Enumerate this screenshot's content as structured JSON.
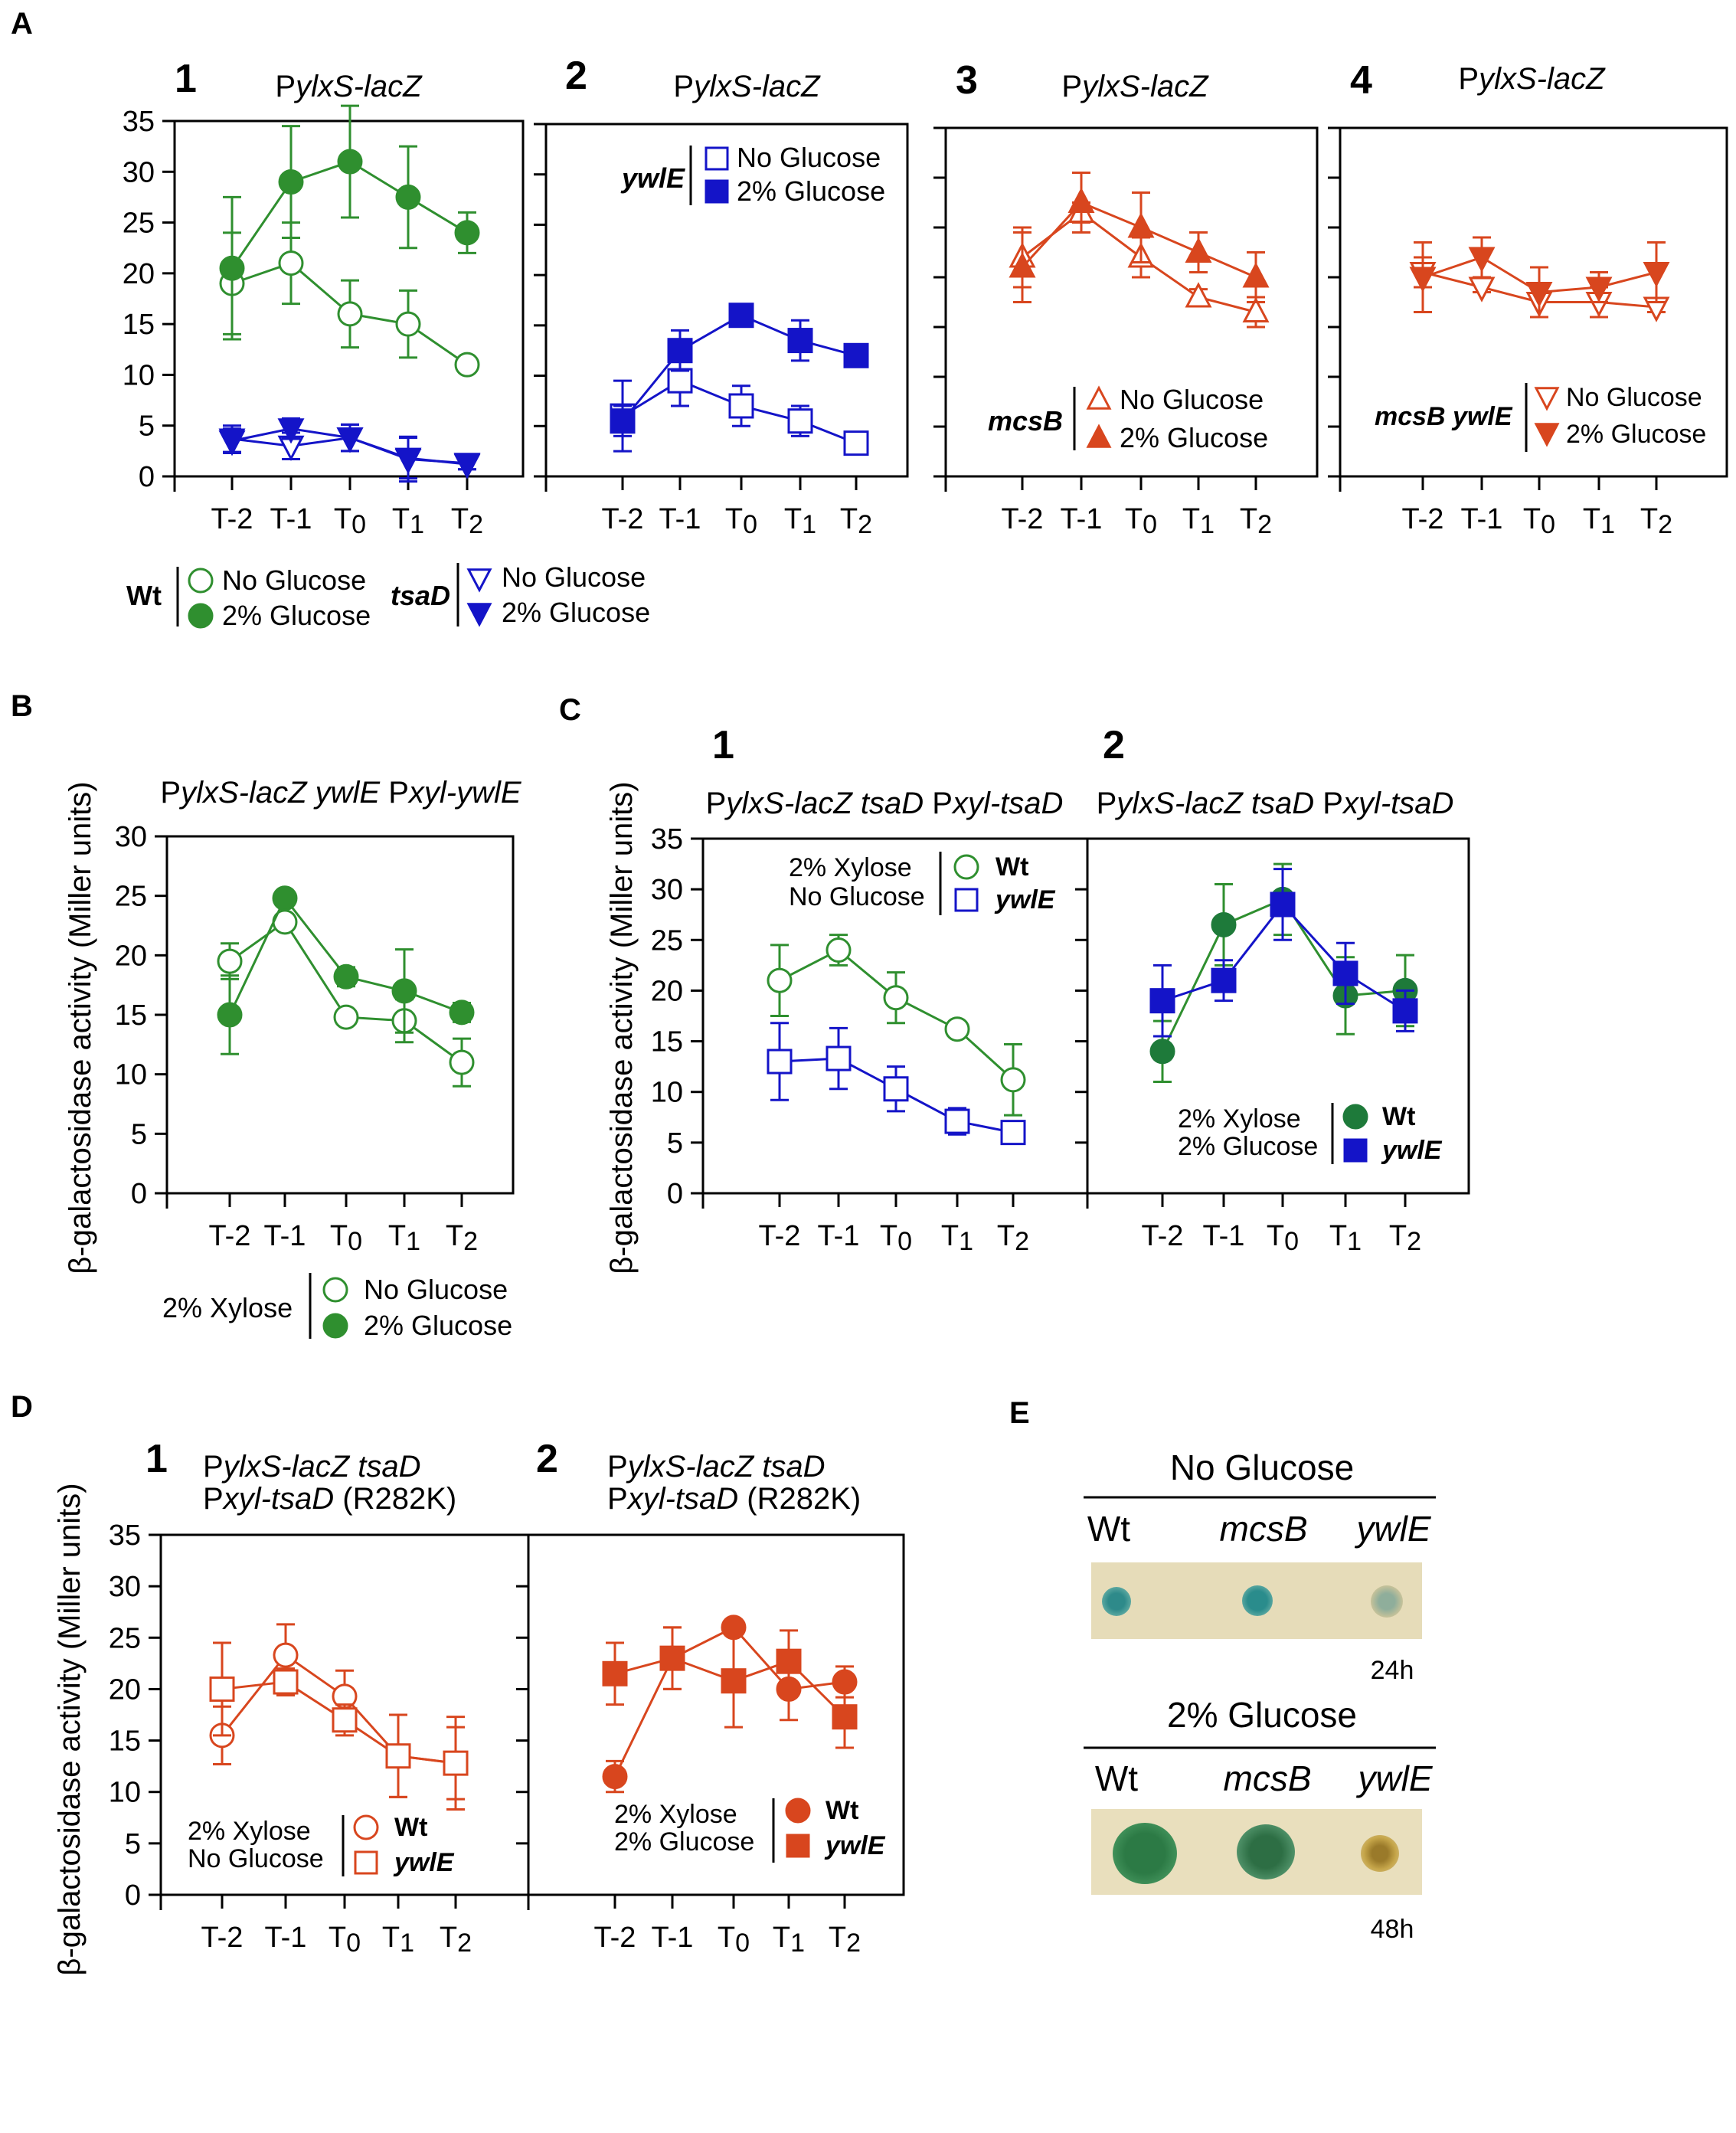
{
  "figure": {
    "colors": {
      "green": "#2f8f2f",
      "blue": "#1414c8",
      "orange": "#d8461e",
      "axis": "#000000"
    },
    "time_labels": [
      "T-2",
      "T-1",
      "T0",
      "T1",
      "T2"
    ]
  },
  "chart_data": [
    {
      "id": "A1",
      "panel": "A",
      "number": "1",
      "type": "line",
      "title": "PylxS-lacZ",
      "title_italic_part": "ylxS-lacZ",
      "ylabel": "",
      "ylim": [
        0,
        35
      ],
      "yticks": [
        0,
        5,
        10,
        15,
        20,
        25,
        30,
        35
      ],
      "show_tick_labels": true,
      "categories": [
        "T-2",
        "T-1",
        "T0",
        "T1",
        "T2"
      ],
      "series": [
        {
          "name": "Wt No Glucose",
          "color": "#2f8f2f",
          "marker": "circle",
          "filled": false,
          "values": [
            19,
            21,
            16,
            15,
            11
          ],
          "errors": [
            5,
            4,
            3.3,
            3.3,
            0.6
          ]
        },
        {
          "name": "Wt 2% Glucose",
          "color": "#2f8f2f",
          "marker": "circle",
          "filled": true,
          "values": [
            20.5,
            29,
            31,
            27.5,
            24
          ],
          "errors": [
            7,
            5.5,
            5.5,
            5,
            2
          ]
        },
        {
          "name": "tsaD No Glucose",
          "color": "#1414c8",
          "marker": "triangle-down",
          "filled": false,
          "values": [
            3.7,
            3,
            3.8,
            1.8,
            1.2
          ],
          "errors": [
            1.3,
            1.3,
            1.3,
            2,
            0.5
          ]
        },
        {
          "name": "tsaD 2% Glucose",
          "color": "#1414c8",
          "marker": "triangle-down",
          "filled": true,
          "values": [
            3.5,
            4.7,
            3.8,
            1.7,
            1.3
          ],
          "errors": [
            1.2,
            1,
            1.3,
            2.2,
            0.6
          ]
        }
      ]
    },
    {
      "id": "A2",
      "panel": "",
      "number": "2",
      "type": "line",
      "title": "PylxS-lacZ",
      "title_italic_part": "ylxS-lacZ",
      "ylim": [
        0,
        35
      ],
      "yticks": [
        0,
        5,
        10,
        15,
        20,
        25,
        30,
        35
      ],
      "show_tick_labels": false,
      "categories": [
        "T-2",
        "T-1",
        "T0",
        "T1",
        "T2"
      ],
      "series": [
        {
          "name": "ywlE No Glucose",
          "color": "#1414c8",
          "marker": "square",
          "filled": false,
          "values": [
            6,
            9.5,
            7,
            5.5,
            3.3
          ],
          "errors": [
            3.5,
            2.5,
            2,
            1.5,
            0.4
          ]
        },
        {
          "name": "ywlE 2% Glucose",
          "color": "#1414c8",
          "marker": "square",
          "filled": true,
          "values": [
            5.5,
            12.5,
            16,
            13.5,
            12
          ],
          "errors": [
            1.5,
            2,
            0.6,
            2,
            0.6
          ]
        }
      ]
    },
    {
      "id": "A3",
      "panel": "",
      "number": "3",
      "type": "line",
      "title": "PylxS-lacZ",
      "title_italic_part": "ylxS-lacZ",
      "ylim": [
        0,
        35
      ],
      "yticks": [
        0,
        5,
        10,
        15,
        20,
        25,
        30,
        35
      ],
      "show_tick_labels": false,
      "categories": [
        "T-2",
        "T-1",
        "T0",
        "T1",
        "T2"
      ],
      "series": [
        {
          "name": "mcsB No Glucose",
          "color": "#d8461e",
          "marker": "triangle-up",
          "filled": false,
          "values": [
            22,
            26.5,
            22,
            18,
            16.5
          ],
          "errors": [
            3,
            1,
            2,
            0.8,
            1.5
          ]
        },
        {
          "name": "mcsB 2% Glucose",
          "color": "#d8461e",
          "marker": "triangle-up",
          "filled": true,
          "values": [
            21,
            27.5,
            25,
            22.5,
            20
          ],
          "errors": [
            3.5,
            3,
            3.5,
            2,
            2.5
          ]
        }
      ]
    },
    {
      "id": "A4",
      "panel": "",
      "number": "4",
      "type": "line",
      "title": "PylxS-lacZ",
      "title_italic_part": "ylxS-lacZ",
      "ylim": [
        0,
        35
      ],
      "yticks": [
        0,
        5,
        10,
        15,
        20,
        25,
        30,
        35
      ],
      "show_tick_labels": false,
      "categories": [
        "T-2",
        "T-1",
        "T0",
        "T1",
        "T2"
      ],
      "series": [
        {
          "name": "mcsB ywlE No Glucose",
          "color": "#d8461e",
          "marker": "triangle-down",
          "filled": false,
          "values": [
            20.5,
            19,
            17.5,
            17.5,
            17
          ],
          "errors": [
            1.5,
            0.5,
            1.5,
            1.5,
            0.5
          ]
        },
        {
          "name": "mcsB ywlE 2% Glucose",
          "color": "#d8461e",
          "marker": "triangle-down",
          "filled": true,
          "values": [
            20,
            22,
            18.5,
            19,
            20.5
          ],
          "errors": [
            3.5,
            2,
            2.5,
            1.5,
            3
          ]
        }
      ]
    },
    {
      "id": "B",
      "panel": "B",
      "number": "",
      "type": "line",
      "title": "PylxS-lacZ ywlE Pxyl-ywlE",
      "ylabel": "β-galactosidase activity (Miller units)",
      "ylim": [
        0,
        30
      ],
      "yticks": [
        0,
        5,
        10,
        15,
        20,
        25,
        30
      ],
      "show_tick_labels": true,
      "categories": [
        "T-2",
        "T-1",
        "T0",
        "T1",
        "T2"
      ],
      "series": [
        {
          "name": "No Glucose",
          "color": "#2f8f2f",
          "marker": "circle",
          "filled": false,
          "values": [
            19.5,
            22.8,
            14.8,
            14.5,
            11
          ],
          "errors": [
            1.5,
            0.5,
            0.4,
            1.8,
            2
          ]
        },
        {
          "name": "2% Glucose",
          "color": "#2f8f2f",
          "marker": "circle",
          "filled": true,
          "values": [
            15,
            24.8,
            18.2,
            17,
            15.2
          ],
          "errors": [
            3.3,
            0.4,
            0.8,
            3.5,
            0.8
          ]
        }
      ]
    },
    {
      "id": "C1",
      "panel": "C",
      "number": "1",
      "type": "line",
      "title": "PylxS-lacZ tsaD Pxyl-tsaD",
      "ylabel": "β-galactosidase activity (Miller units)",
      "ylim": [
        0,
        35
      ],
      "yticks": [
        0,
        5,
        10,
        15,
        20,
        25,
        30,
        35
      ],
      "show_tick_labels": true,
      "categories": [
        "T-2",
        "T-1",
        "T0",
        "T1",
        "T2"
      ],
      "series": [
        {
          "name": "Wt",
          "color": "#2f8f2f",
          "marker": "circle",
          "filled": false,
          "values": [
            21,
            24,
            19.3,
            16.2,
            11.2
          ],
          "errors": [
            3.5,
            1.5,
            2.5,
            0.5,
            3.5
          ]
        },
        {
          "name": "ywlE",
          "color": "#1414c8",
          "marker": "square",
          "filled": false,
          "values": [
            13,
            13.3,
            10.3,
            7.1,
            6
          ],
          "errors": [
            3.8,
            3,
            2.2,
            1.3,
            0.5
          ]
        }
      ]
    },
    {
      "id": "C2",
      "panel": "",
      "number": "2",
      "type": "line",
      "title": "PylxS-lacZ tsaD Pxyl-tsaD",
      "ylim": [
        0,
        35
      ],
      "yticks": [
        0,
        5,
        10,
        15,
        20,
        25,
        30,
        35
      ],
      "show_tick_labels": false,
      "categories": [
        "T-2",
        "T-1",
        "T0",
        "T1",
        "T2"
      ],
      "series": [
        {
          "name": "Wt",
          "color": "#1e7a3a",
          "line_color": "#2f8f2f",
          "marker": "circle",
          "filled": true,
          "values": [
            14,
            26.5,
            29,
            19.5,
            20
          ],
          "errors": [
            3,
            4,
            3.5,
            3.8,
            3.5
          ]
        },
        {
          "name": "ywlE",
          "color": "#1414c8",
          "marker": "square",
          "filled": true,
          "values": [
            19,
            21,
            28.5,
            21.7,
            18
          ],
          "errors": [
            3.5,
            2,
            3.5,
            3,
            2
          ]
        }
      ]
    },
    {
      "id": "D1",
      "panel": "D",
      "number": "1",
      "type": "line",
      "title": "PylxS-lacZ tsaD",
      "title_line2": "Pxyl-tsaD (R282K)",
      "ylabel": "β-galactosidase activity (Miller units)",
      "ylim": [
        0,
        35
      ],
      "yticks": [
        0,
        5,
        10,
        15,
        20,
        25,
        30,
        35
      ],
      "show_tick_labels": true,
      "categories": [
        "T-2",
        "T-1",
        "T0",
        "T1",
        "T2"
      ],
      "series": [
        {
          "name": "Wt",
          "color": "#d8461e",
          "marker": "circle",
          "filled": false,
          "values": [
            15.5,
            23.3,
            19.3,
            13.5,
            12.8
          ],
          "errors": [
            2.8,
            3,
            2.5,
            4,
            4.5
          ]
        },
        {
          "name": "ywlE",
          "color": "#d8461e",
          "marker": "square",
          "filled": false,
          "values": [
            20,
            20.7,
            17,
            13.5,
            12.8
          ],
          "errors": [
            4.5,
            1.3,
            1.5,
            4,
            3.5
          ]
        }
      ]
    },
    {
      "id": "D2",
      "panel": "",
      "number": "2",
      "type": "line",
      "title": "PylxS-lacZ tsaD",
      "title_line2": "Pxyl-tsaD (R282K)",
      "ylim": [
        0,
        35
      ],
      "yticks": [
        0,
        5,
        10,
        15,
        20,
        25,
        30,
        35
      ],
      "show_tick_labels": false,
      "categories": [
        "T-2",
        "T-1",
        "T0",
        "T1",
        "T2"
      ],
      "series": [
        {
          "name": "Wt",
          "color": "#d8461e",
          "marker": "circle",
          "filled": true,
          "values": [
            11.5,
            23,
            26,
            20,
            20.7
          ],
          "errors": [
            1.5,
            3,
            0.5,
            3,
            1.5
          ]
        },
        {
          "name": "ywlE",
          "color": "#d8461e",
          "marker": "square",
          "filled": true,
          "values": [
            21.5,
            23,
            20.8,
            22.7,
            17.3
          ],
          "errors": [
            3,
            3,
            4.5,
            3,
            3
          ]
        }
      ]
    }
  ],
  "legends": {
    "A1": {
      "wt_label": "Wt",
      "tsad_label": "tsaD",
      "no_glucose": "No Glucose",
      "glucose": "2% Glucose"
    },
    "A2": {
      "strain": "ywlE",
      "no_glucose": "No Glucose",
      "glucose": "2% Glucose"
    },
    "A3": {
      "strain": "mcsB",
      "no_glucose": "No Glucose",
      "glucose": "2% Glucose"
    },
    "A4": {
      "strain": "mcsB ywlE",
      "no_glucose": "No Glucose",
      "glucose": "2% Glucose"
    },
    "B": {
      "condition": "2% Xylose",
      "no_glucose": "No Glucose",
      "glucose": "2% Glucose"
    },
    "C1": {
      "line1": "2% Xylose",
      "line2": "No Glucose",
      "wt": "Wt",
      "ywle": "ywlE"
    },
    "C2": {
      "line1": "2% Xylose",
      "line2": "2% Glucose",
      "wt": "Wt",
      "ywle": "ywlE"
    },
    "D1": {
      "line1": "2% Xylose",
      "line2": "No Glucose",
      "wt": "Wt",
      "ywle": "ywlE"
    },
    "D2": {
      "line1": "2% Xylose",
      "line2": "2% Glucose",
      "wt": "Wt",
      "ywle": "ywlE"
    }
  },
  "panel_e": {
    "letter": "E",
    "top": {
      "title": "No Glucose",
      "labels": [
        "Wt",
        "mcsB",
        "ywlE"
      ],
      "time": "24h"
    },
    "bottom": {
      "title": "2% Glucose",
      "labels": [
        "Wt",
        "mcsB",
        "ywlE"
      ],
      "time": "48h"
    }
  }
}
